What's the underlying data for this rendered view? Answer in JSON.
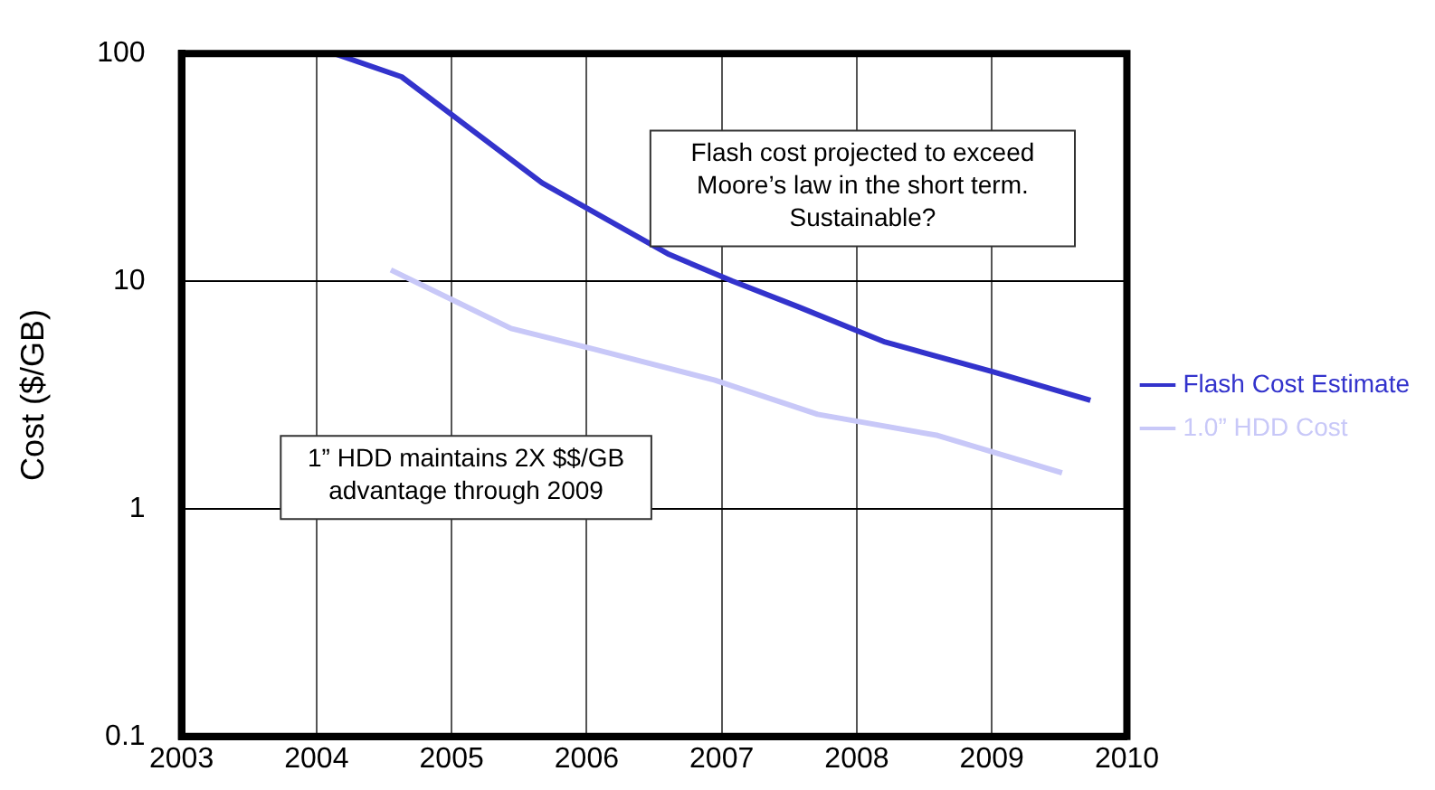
{
  "chart_data": {
    "type": "line",
    "ylabel": "Cost ($/GB)",
    "log": "y",
    "grid": true,
    "legend": "right",
    "xlim": [
      2003,
      2010
    ],
    "xticks": [
      2003,
      2004,
      2005,
      2006,
      2007,
      2008,
      2009,
      2010
    ],
    "ylim": [
      0.1,
      100
    ],
    "yticks": [
      0.1,
      1,
      10,
      100
    ],
    "series": [
      {
        "name": "Flash Cost Estimate",
        "color": "#3333cc",
        "x": [
          2004.13,
          2004.63,
          2005.67,
          2006.6,
          2007.08,
          2007.57,
          2008.21,
          2009.01,
          2009.73
        ],
        "values": [
          100,
          79,
          27,
          13.2,
          10,
          7.7,
          5.4,
          4.0,
          3.0
        ]
      },
      {
        "name": "1.0” HDD Cost",
        "color": "#c8c8f8",
        "x": [
          2004.55,
          2005.44,
          2006.07,
          2006.95,
          2007.71,
          2008.6,
          2009.52
        ],
        "values": [
          11.2,
          6.2,
          5.0,
          3.67,
          2.6,
          2.1,
          1.44
        ]
      }
    ],
    "annotations": [
      "Flash cost projected to exceed Moore’s law in the short term. Sustainable?",
      "1” HDD maintains 2X $$/GB advantage through 2009"
    ]
  }
}
